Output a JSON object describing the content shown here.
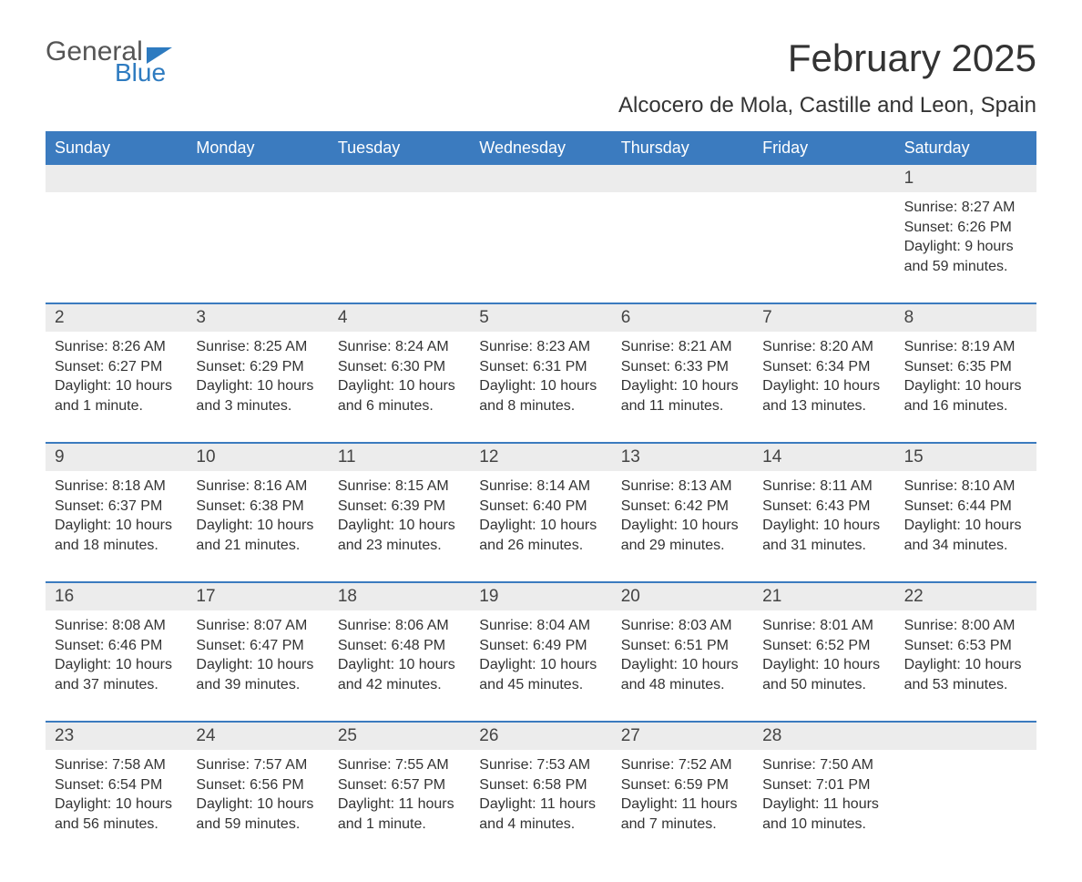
{
  "logo": {
    "general": "General",
    "blue": "Blue"
  },
  "title": "February 2025",
  "subtitle": "Alcocero de Mola, Castille and Leon, Spain",
  "colors": {
    "header_bg": "#3b7bbf",
    "header_text": "#ffffff",
    "daynum_bg": "#ececec",
    "border": "#3b7bbf",
    "body_text": "#333333",
    "logo_blue": "#2e7bc0",
    "logo_gray": "#555555",
    "background": "#ffffff"
  },
  "typography": {
    "title_fontsize": 42,
    "subtitle_fontsize": 24,
    "header_fontsize": 18,
    "daynum_fontsize": 19,
    "cell_fontsize": 16
  },
  "day_names": [
    "Sunday",
    "Monday",
    "Tuesday",
    "Wednesday",
    "Thursday",
    "Friday",
    "Saturday"
  ],
  "weeks": [
    [
      {
        "num": "",
        "sunrise": "",
        "sunset": "",
        "daylight": ""
      },
      {
        "num": "",
        "sunrise": "",
        "sunset": "",
        "daylight": ""
      },
      {
        "num": "",
        "sunrise": "",
        "sunset": "",
        "daylight": ""
      },
      {
        "num": "",
        "sunrise": "",
        "sunset": "",
        "daylight": ""
      },
      {
        "num": "",
        "sunrise": "",
        "sunset": "",
        "daylight": ""
      },
      {
        "num": "",
        "sunrise": "",
        "sunset": "",
        "daylight": ""
      },
      {
        "num": "1",
        "sunrise": "Sunrise: 8:27 AM",
        "sunset": "Sunset: 6:26 PM",
        "daylight": "Daylight: 9 hours and 59 minutes."
      }
    ],
    [
      {
        "num": "2",
        "sunrise": "Sunrise: 8:26 AM",
        "sunset": "Sunset: 6:27 PM",
        "daylight": "Daylight: 10 hours and 1 minute."
      },
      {
        "num": "3",
        "sunrise": "Sunrise: 8:25 AM",
        "sunset": "Sunset: 6:29 PM",
        "daylight": "Daylight: 10 hours and 3 minutes."
      },
      {
        "num": "4",
        "sunrise": "Sunrise: 8:24 AM",
        "sunset": "Sunset: 6:30 PM",
        "daylight": "Daylight: 10 hours and 6 minutes."
      },
      {
        "num": "5",
        "sunrise": "Sunrise: 8:23 AM",
        "sunset": "Sunset: 6:31 PM",
        "daylight": "Daylight: 10 hours and 8 minutes."
      },
      {
        "num": "6",
        "sunrise": "Sunrise: 8:21 AM",
        "sunset": "Sunset: 6:33 PM",
        "daylight": "Daylight: 10 hours and 11 minutes."
      },
      {
        "num": "7",
        "sunrise": "Sunrise: 8:20 AM",
        "sunset": "Sunset: 6:34 PM",
        "daylight": "Daylight: 10 hours and 13 minutes."
      },
      {
        "num": "8",
        "sunrise": "Sunrise: 8:19 AM",
        "sunset": "Sunset: 6:35 PM",
        "daylight": "Daylight: 10 hours and 16 minutes."
      }
    ],
    [
      {
        "num": "9",
        "sunrise": "Sunrise: 8:18 AM",
        "sunset": "Sunset: 6:37 PM",
        "daylight": "Daylight: 10 hours and 18 minutes."
      },
      {
        "num": "10",
        "sunrise": "Sunrise: 8:16 AM",
        "sunset": "Sunset: 6:38 PM",
        "daylight": "Daylight: 10 hours and 21 minutes."
      },
      {
        "num": "11",
        "sunrise": "Sunrise: 8:15 AM",
        "sunset": "Sunset: 6:39 PM",
        "daylight": "Daylight: 10 hours and 23 minutes."
      },
      {
        "num": "12",
        "sunrise": "Sunrise: 8:14 AM",
        "sunset": "Sunset: 6:40 PM",
        "daylight": "Daylight: 10 hours and 26 minutes."
      },
      {
        "num": "13",
        "sunrise": "Sunrise: 8:13 AM",
        "sunset": "Sunset: 6:42 PM",
        "daylight": "Daylight: 10 hours and 29 minutes."
      },
      {
        "num": "14",
        "sunrise": "Sunrise: 8:11 AM",
        "sunset": "Sunset: 6:43 PM",
        "daylight": "Daylight: 10 hours and 31 minutes."
      },
      {
        "num": "15",
        "sunrise": "Sunrise: 8:10 AM",
        "sunset": "Sunset: 6:44 PM",
        "daylight": "Daylight: 10 hours and 34 minutes."
      }
    ],
    [
      {
        "num": "16",
        "sunrise": "Sunrise: 8:08 AM",
        "sunset": "Sunset: 6:46 PM",
        "daylight": "Daylight: 10 hours and 37 minutes."
      },
      {
        "num": "17",
        "sunrise": "Sunrise: 8:07 AM",
        "sunset": "Sunset: 6:47 PM",
        "daylight": "Daylight: 10 hours and 39 minutes."
      },
      {
        "num": "18",
        "sunrise": "Sunrise: 8:06 AM",
        "sunset": "Sunset: 6:48 PM",
        "daylight": "Daylight: 10 hours and 42 minutes."
      },
      {
        "num": "19",
        "sunrise": "Sunrise: 8:04 AM",
        "sunset": "Sunset: 6:49 PM",
        "daylight": "Daylight: 10 hours and 45 minutes."
      },
      {
        "num": "20",
        "sunrise": "Sunrise: 8:03 AM",
        "sunset": "Sunset: 6:51 PM",
        "daylight": "Daylight: 10 hours and 48 minutes."
      },
      {
        "num": "21",
        "sunrise": "Sunrise: 8:01 AM",
        "sunset": "Sunset: 6:52 PM",
        "daylight": "Daylight: 10 hours and 50 minutes."
      },
      {
        "num": "22",
        "sunrise": "Sunrise: 8:00 AM",
        "sunset": "Sunset: 6:53 PM",
        "daylight": "Daylight: 10 hours and 53 minutes."
      }
    ],
    [
      {
        "num": "23",
        "sunrise": "Sunrise: 7:58 AM",
        "sunset": "Sunset: 6:54 PM",
        "daylight": "Daylight: 10 hours and 56 minutes."
      },
      {
        "num": "24",
        "sunrise": "Sunrise: 7:57 AM",
        "sunset": "Sunset: 6:56 PM",
        "daylight": "Daylight: 10 hours and 59 minutes."
      },
      {
        "num": "25",
        "sunrise": "Sunrise: 7:55 AM",
        "sunset": "Sunset: 6:57 PM",
        "daylight": "Daylight: 11 hours and 1 minute."
      },
      {
        "num": "26",
        "sunrise": "Sunrise: 7:53 AM",
        "sunset": "Sunset: 6:58 PM",
        "daylight": "Daylight: 11 hours and 4 minutes."
      },
      {
        "num": "27",
        "sunrise": "Sunrise: 7:52 AM",
        "sunset": "Sunset: 6:59 PM",
        "daylight": "Daylight: 11 hours and 7 minutes."
      },
      {
        "num": "28",
        "sunrise": "Sunrise: 7:50 AM",
        "sunset": "Sunset: 7:01 PM",
        "daylight": "Daylight: 11 hours and 10 minutes."
      },
      {
        "num": "",
        "sunrise": "",
        "sunset": "",
        "daylight": ""
      }
    ]
  ]
}
